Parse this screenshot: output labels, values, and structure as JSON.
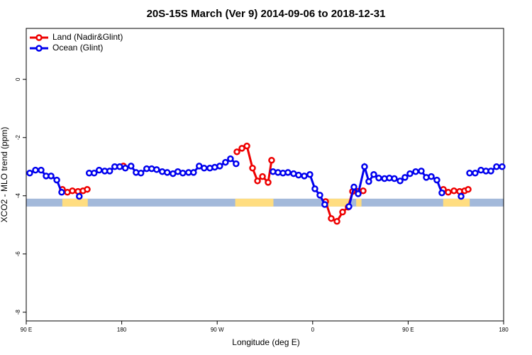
{
  "chart_data": {
    "type": "line",
    "title": "20S-15S March (Ver 9)   2014-09-06 to 2018-12-31",
    "xlabel": "Longitude (deg E)",
    "ylabel": "XCO2 - MLO trend (ppm)",
    "xlim": [
      90,
      540
    ],
    "ylim": [
      -8.3,
      1.75
    ],
    "xticks": [
      {
        "value": 90,
        "label": "90 E"
      },
      180,
      {
        "value": 270,
        "label": "90 W"
      },
      {
        "value": 360,
        "label": "0"
      },
      {
        "value": 450,
        "label": "90 E"
      },
      {
        "value": 540,
        "label": "180"
      }
    ],
    "yticks": [
      0,
      -2,
      -4,
      -6,
      -8
    ],
    "legend": "top-left",
    "surface_band": {
      "y": [
        -4.37,
        -4.1
      ],
      "land_color": "#ffdd80",
      "ocean_color": "#a3b9da",
      "land": [
        [
          124,
          148
        ],
        [
          287,
          323
        ],
        [
          371,
          396
        ],
        [
          401,
          406
        ],
        [
          483,
          508
        ]
      ]
    },
    "series": [
      {
        "name": "Land (Nadir&Glint)",
        "color": "#ee0000",
        "x": [
          124.1,
          128.8,
          133.5,
          138.8,
          143.5,
          147.5,
          null,
          181.6,
          null,
          288.6,
          293.3,
          298,
          303.3,
          308,
          312.7,
          318,
          321.3,
          null,
          372.2,
          377.5,
          382.9,
          388.2,
          393.5,
          397.6,
          402.9,
          407.6,
          null,
          483.2,
          487.8,
          493.2,
          498.5,
          503.2,
          506.6
        ],
        "values": [
          -3.78,
          -3.88,
          -3.83,
          -3.85,
          -3.83,
          -3.78,
          null,
          -2.98,
          null,
          -2.49,
          -2.37,
          -2.29,
          -3.05,
          -3.49,
          -3.34,
          -3.54,
          -2.78,
          null,
          -4.2,
          -4.78,
          -4.88,
          -4.56,
          -4.39,
          -3.85,
          -3.85,
          -3.83,
          null,
          -3.78,
          -3.88,
          -3.83,
          -3.85,
          -3.83,
          -3.78
        ]
      },
      {
        "name": "Ocean (Glint)",
        "color": "#0000ee",
        "x": [
          93.3,
          98.7,
          104,
          108.7,
          113.4,
          118.8,
          123.4,
          null,
          140,
          null,
          149.3,
          154,
          158.7,
          164,
          168.7,
          173.4,
          178.1,
          183.4,
          188.8,
          193.5,
          198.1,
          203.5,
          208.2,
          212.9,
          218.2,
          222.9,
          228.3,
          232.9,
          237.6,
          243,
          247.7,
          253,
          257.7,
          263.1,
          267.7,
          272.4,
          277.8,
          282.5,
          287.8,
          null,
          322.6,
          327.3,
          332,
          336.7,
          342,
          346.7,
          352.1,
          357.4,
          362.1,
          366.8,
          371.4,
          null,
          394.2,
          398.9,
          402.9,
          408.9,
          412.9,
          417.6,
          422.3,
          427.7,
          432.3,
          437,
          442.4,
          447,
          451.7,
          457.1,
          462.4,
          467.1,
          471.8,
          477.1,
          481.8,
          null,
          499.9,
          null,
          507.9,
          513.2,
          518.6,
          523.3,
          528,
          533.3,
          538.6
        ],
        "values": [
          -3.22,
          -3.12,
          -3.12,
          -3.32,
          -3.32,
          -3.46,
          -3.88,
          null,
          -4.02,
          null,
          -3.22,
          -3.22,
          -3.12,
          -3.15,
          -3.15,
          -3.0,
          -3.0,
          -3.05,
          -2.98,
          -3.2,
          -3.22,
          -3.07,
          -3.07,
          -3.1,
          -3.17,
          -3.2,
          -3.24,
          -3.17,
          -3.22,
          -3.2,
          -3.2,
          -2.98,
          -3.05,
          -3.05,
          -3.02,
          -2.98,
          -2.85,
          -2.73,
          -2.9,
          null,
          -3.17,
          -3.2,
          -3.22,
          -3.2,
          -3.24,
          -3.29,
          -3.32,
          -3.27,
          -3.76,
          -3.98,
          -4.3,
          null,
          -4.37,
          -3.7,
          -3.93,
          -3.0,
          -3.51,
          -3.27,
          -3.39,
          -3.41,
          -3.39,
          -3.41,
          -3.49,
          -3.37,
          -3.24,
          -3.17,
          -3.15,
          -3.37,
          -3.34,
          -3.46,
          -3.9,
          null,
          -4.02,
          null,
          -3.22,
          -3.22,
          -3.12,
          -3.15,
          -3.15,
          -3.0,
          -3.0
        ]
      }
    ]
  }
}
